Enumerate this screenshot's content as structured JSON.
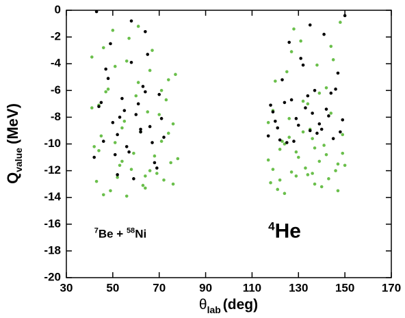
{
  "chart_data": {
    "type": "scatter",
    "x_label": {
      "main": "θ",
      "sub": "lab",
      "unit": "(deg)"
    },
    "y_label": {
      "main": "Q",
      "sub": "value",
      "unit": "(MeV)"
    },
    "annotations": [
      {
        "parts": [
          "7",
          "Be + ",
          "58",
          "Ni"
        ],
        "x": 42,
        "y": -17
      },
      {
        "parts": [
          "4",
          "He"
        ],
        "x": 117,
        "y": -17
      }
    ],
    "xlim": [
      30,
      170
    ],
    "xticks": [
      30,
      50,
      70,
      90,
      110,
      130,
      150,
      170
    ],
    "ylim": [
      -20,
      0
    ],
    "yticks": [
      -20,
      -18,
      -16,
      -14,
      -12,
      -10,
      -8,
      -6,
      -4,
      -2,
      0
    ],
    "series": [
      {
        "color": "#6abf4b",
        "x": [
          41,
          43,
          45,
          47,
          49,
          51,
          53,
          55,
          57,
          59,
          61,
          63,
          65,
          67,
          69,
          71,
          73,
          75,
          77,
          42,
          44,
          46,
          48,
          50,
          52,
          54,
          56,
          58,
          60,
          62,
          64,
          66,
          68,
          70,
          72,
          74,
          76,
          78,
          41,
          46,
          51,
          56,
          61,
          66,
          71,
          76,
          44,
          54,
          64,
          74,
          117,
          119,
          121,
          123,
          125,
          127,
          129,
          131,
          133,
          135,
          137,
          139,
          141,
          143,
          145,
          147,
          149,
          118,
          120,
          122,
          124,
          126,
          128,
          130,
          132,
          134,
          136,
          138,
          140,
          142,
          144,
          146,
          148,
          150,
          117,
          122,
          127,
          132,
          137,
          142,
          147,
          119,
          124,
          129,
          134,
          139,
          144,
          149,
          126,
          136
        ],
        "values": [
          -3.5,
          -12.8,
          -9.4,
          -6.1,
          -13.5,
          -4.2,
          -11.6,
          -8.3,
          -2.1,
          -10.7,
          -5.4,
          -13.1,
          -7.6,
          -3.0,
          -12.2,
          -9.8,
          -6.7,
          -11.4,
          -4.8,
          -10.2,
          -7.1,
          -13.8,
          -5.9,
          -1.5,
          -12.5,
          -8.8,
          -3.8,
          -11.9,
          -6.4,
          -9.1,
          -13.3,
          -4.5,
          -10.9,
          -7.8,
          -12.7,
          -5.2,
          -8.5,
          -11.1,
          -7.3,
          -2.8,
          -9.9,
          -13.9,
          -1.2,
          -12.0,
          -6.0,
          -13.0,
          -10.5,
          -11.3,
          -12.4,
          -9.2,
          -11.2,
          -7.5,
          -13.4,
          -9.8,
          -4.6,
          -12.1,
          -10.6,
          -2.3,
          -11.8,
          -8.9,
          -13.0,
          -6.2,
          -10.1,
          -12.6,
          -3.7,
          -11.5,
          -9.3,
          -12.9,
          -5.3,
          -10.4,
          -13.7,
          -8.1,
          -1.4,
          -11.0,
          -6.8,
          -12.3,
          -9.6,
          -4.1,
          -13.2,
          -10.8,
          -7.7,
          -12.0,
          -0.9,
          -11.6,
          -8.4,
          -12.7,
          -3.1,
          -9.1,
          -10.3,
          -5.8,
          -13.5,
          -11.9,
          -10.0,
          -12.4,
          -7.0,
          -11.3,
          -2.7,
          -10.7,
          -9.5,
          -12.2
        ]
      },
      {
        "color": "#000000",
        "x": [
          42,
          44,
          46,
          48,
          50,
          52,
          54,
          56,
          58,
          60,
          62,
          64,
          66,
          68,
          70,
          72,
          43,
          47,
          51,
          55,
          59,
          63,
          67,
          71,
          45,
          49,
          53,
          57,
          61,
          65,
          69,
          52,
          58,
          64,
          62,
          117,
          119,
          121,
          123,
          125,
          127,
          129,
          131,
          133,
          135,
          137,
          139,
          141,
          143,
          145,
          147,
          149,
          118,
          122,
          126,
          130,
          134,
          138,
          142,
          146,
          150,
          120,
          124,
          128,
          132,
          136,
          140,
          144,
          148,
          135
        ],
        "values": [
          -11.0,
          -7.2,
          -9.8,
          -5.1,
          -8.4,
          -12.3,
          -6.6,
          -10.2,
          -3.9,
          -7.8,
          -9.1,
          -1.6,
          -8.7,
          -11.4,
          -6.3,
          -9.5,
          -0.1,
          -4.4,
          -10.8,
          -7.5,
          -12.6,
          -5.7,
          -9.9,
          -8.1,
          -6.9,
          -2.5,
          -8.0,
          -10.6,
          -7.0,
          -3.3,
          -11.8,
          -9.3,
          -0.8,
          -6.1,
          -8.9,
          -9.4,
          -7.6,
          -8.8,
          -5.2,
          -9.9,
          -6.7,
          -8.1,
          -3.6,
          -7.3,
          -9.0,
          -6.0,
          -8.5,
          -1.8,
          -7.9,
          -9.6,
          -4.7,
          -8.2,
          -7.1,
          -9.7,
          -2.4,
          -8.6,
          -6.4,
          -9.2,
          -7.4,
          -5.9,
          -0.4,
          -8.3,
          -6.9,
          -9.8,
          -4.1,
          -7.7,
          -8.9,
          -6.2,
          -9.1,
          -1.1
        ]
      }
    ]
  }
}
